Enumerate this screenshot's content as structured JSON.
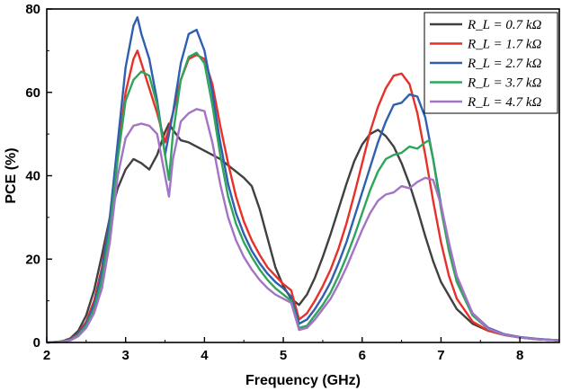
{
  "chart_data": {
    "type": "line",
    "title": "",
    "xlabel": "Frequency (GHz)",
    "ylabel": "PCE (%)",
    "xlim": [
      2,
      8.5
    ],
    "ylim": [
      0,
      80
    ],
    "xticks": [
      "2",
      "3",
      "4",
      "5",
      "6",
      "7",
      "8"
    ],
    "yticks": [
      "0",
      "20",
      "40",
      "60",
      "80"
    ],
    "grid": false,
    "legend_position": "top-right",
    "colors": [
      "#404040",
      "#e8302a",
      "#2f5fb0",
      "#2ea55a",
      "#a374c6"
    ],
    "series": [
      {
        "name": "R_L = 0.7 kΩ",
        "legend_label": "R_L = 0.7 kΩ",
        "x": [
          2.0,
          2.1,
          2.2,
          2.3,
          2.4,
          2.5,
          2.6,
          2.7,
          2.8,
          2.9,
          3.0,
          3.1,
          3.2,
          3.3,
          3.4,
          3.5,
          3.55,
          3.6,
          3.7,
          3.8,
          3.9,
          4.0,
          4.1,
          4.2,
          4.3,
          4.4,
          4.5,
          4.6,
          4.7,
          4.8,
          4.9,
          5.0,
          5.1,
          5.2,
          5.3,
          5.4,
          5.5,
          5.6,
          5.7,
          5.8,
          5.9,
          6.0,
          6.1,
          6.2,
          6.3,
          6.4,
          6.5,
          6.6,
          6.7,
          6.8,
          6.9,
          7.0,
          7.2,
          7.4,
          7.6,
          7.8,
          8.0,
          8.2,
          8.5
        ],
        "y": [
          0,
          0.1,
          0.3,
          1.0,
          2.8,
          6.5,
          12.5,
          21.0,
          30.0,
          37.0,
          41.5,
          44.0,
          43.0,
          41.5,
          45.0,
          50.5,
          52.5,
          51.0,
          48.5,
          48.0,
          47.0,
          46.0,
          45.0,
          44.0,
          42.5,
          41.0,
          39.5,
          37.5,
          32.0,
          25.0,
          18.0,
          13.5,
          10.5,
          9.0,
          11.5,
          15.5,
          20.5,
          26.0,
          32.0,
          38.0,
          43.5,
          47.5,
          50.0,
          51.0,
          49.5,
          47.0,
          43.0,
          38.0,
          32.0,
          25.5,
          19.5,
          14.5,
          8.0,
          4.5,
          2.8,
          1.8,
          1.2,
          0.8,
          0.5
        ]
      },
      {
        "name": "R_L = 1.7 kΩ",
        "legend_label": "R_L = 1.7 kΩ",
        "x": [
          2.0,
          2.1,
          2.2,
          2.3,
          2.4,
          2.5,
          2.6,
          2.7,
          2.8,
          2.9,
          3.0,
          3.1,
          3.15,
          3.2,
          3.3,
          3.4,
          3.5,
          3.6,
          3.7,
          3.8,
          3.9,
          4.0,
          4.1,
          4.2,
          4.3,
          4.4,
          4.5,
          4.6,
          4.7,
          4.8,
          4.9,
          5.0,
          5.1,
          5.2,
          5.3,
          5.4,
          5.5,
          5.6,
          5.7,
          5.8,
          5.9,
          6.0,
          6.1,
          6.2,
          6.3,
          6.4,
          6.5,
          6.6,
          6.7,
          6.8,
          6.9,
          7.0,
          7.1,
          7.2,
          7.4,
          7.6,
          7.8,
          8.0,
          8.2,
          8.5
        ],
        "y": [
          0,
          0.1,
          0.2,
          0.8,
          2.2,
          5.0,
          10.0,
          18.0,
          30.0,
          45.0,
          60.0,
          68.0,
          70.0,
          67.0,
          61.0,
          55.0,
          48.0,
          55.0,
          63.0,
          68.0,
          69.0,
          68.0,
          62.0,
          52.0,
          43.0,
          35.0,
          29.0,
          24.5,
          21.0,
          18.0,
          16.0,
          14.0,
          12.5,
          5.5,
          7.0,
          10.0,
          13.5,
          17.5,
          22.5,
          28.5,
          35.5,
          43.0,
          50.5,
          56.5,
          61.0,
          64.0,
          64.5,
          62.0,
          55.0,
          45.0,
          34.0,
          24.0,
          16.0,
          10.5,
          5.0,
          2.8,
          1.8,
          1.2,
          0.8,
          0.5
        ]
      },
      {
        "name": "R_L = 2.7 kΩ",
        "legend_label": "R_L = 2.7 kΩ",
        "x": [
          2.0,
          2.1,
          2.2,
          2.3,
          2.4,
          2.5,
          2.6,
          2.7,
          2.8,
          2.9,
          3.0,
          3.1,
          3.15,
          3.2,
          3.3,
          3.4,
          3.5,
          3.6,
          3.7,
          3.8,
          3.9,
          4.0,
          4.1,
          4.2,
          4.3,
          4.4,
          4.5,
          4.6,
          4.7,
          4.8,
          4.9,
          5.0,
          5.1,
          5.2,
          5.3,
          5.4,
          5.5,
          5.6,
          5.7,
          5.8,
          5.9,
          6.0,
          6.1,
          6.2,
          6.3,
          6.4,
          6.5,
          6.6,
          6.7,
          6.8,
          6.9,
          7.0,
          7.1,
          7.2,
          7.4,
          7.6,
          7.8,
          8.0,
          8.2,
          8.5
        ],
        "y": [
          0,
          0.1,
          0.2,
          0.7,
          2.0,
          4.5,
          9.0,
          17.0,
          30.0,
          48.0,
          66.0,
          76.0,
          78.0,
          74.0,
          68.0,
          58.0,
          45.0,
          55.0,
          67.0,
          74.0,
          75.0,
          70.0,
          60.0,
          48.0,
          38.0,
          31.0,
          26.0,
          22.0,
          19.0,
          16.5,
          14.5,
          13.0,
          11.0,
          4.5,
          5.5,
          8.0,
          11.0,
          14.5,
          19.0,
          24.0,
          30.0,
          36.0,
          42.0,
          48.0,
          53.0,
          57.0,
          57.5,
          59.5,
          59.0,
          54.0,
          44.0,
          33.0,
          23.0,
          15.0,
          7.0,
          3.5,
          2.0,
          1.3,
          0.9,
          0.5
        ]
      },
      {
        "name": "R_L = 3.7 kΩ",
        "legend_label": "R_L = 3.7 kΩ",
        "x": [
          2.0,
          2.1,
          2.2,
          2.3,
          2.4,
          2.5,
          2.6,
          2.7,
          2.8,
          2.9,
          3.0,
          3.1,
          3.2,
          3.3,
          3.4,
          3.5,
          3.55,
          3.6,
          3.7,
          3.8,
          3.9,
          4.0,
          4.1,
          4.2,
          4.3,
          4.4,
          4.5,
          4.6,
          4.7,
          4.8,
          4.9,
          5.0,
          5.1,
          5.2,
          5.3,
          5.4,
          5.5,
          5.6,
          5.7,
          5.8,
          5.9,
          6.0,
          6.1,
          6.2,
          6.3,
          6.4,
          6.5,
          6.6,
          6.7,
          6.8,
          6.85,
          6.9,
          7.0,
          7.1,
          7.2,
          7.4,
          7.6,
          7.8,
          8.0,
          8.2,
          8.5
        ],
        "y": [
          0,
          0.1,
          0.2,
          0.6,
          1.8,
          4.0,
          8.0,
          15.0,
          27.0,
          44.0,
          58.0,
          63.0,
          65.0,
          64.0,
          57.0,
          45.0,
          39.0,
          50.0,
          63.0,
          68.5,
          69.5,
          67.0,
          57.0,
          45.0,
          35.0,
          28.5,
          24.0,
          20.5,
          17.5,
          15.0,
          13.0,
          11.5,
          10.0,
          3.5,
          4.0,
          6.5,
          9.0,
          12.0,
          16.0,
          20.5,
          25.5,
          31.0,
          36.5,
          41.0,
          44.0,
          45.0,
          45.5,
          47.0,
          46.5,
          48.0,
          48.5,
          44.0,
          32.0,
          22.0,
          14.5,
          6.5,
          3.2,
          1.9,
          1.2,
          0.8,
          0.5
        ]
      },
      {
        "name": "R_L = 4.7 kΩ",
        "legend_label": "R_L = 4.7 kΩ",
        "x": [
          2.0,
          2.1,
          2.2,
          2.3,
          2.4,
          2.5,
          2.6,
          2.7,
          2.8,
          2.9,
          3.0,
          3.1,
          3.2,
          3.3,
          3.4,
          3.5,
          3.55,
          3.6,
          3.7,
          3.8,
          3.9,
          4.0,
          4.1,
          4.2,
          4.3,
          4.4,
          4.5,
          4.6,
          4.7,
          4.8,
          4.9,
          5.0,
          5.1,
          5.2,
          5.3,
          5.4,
          5.5,
          5.6,
          5.7,
          5.8,
          5.9,
          6.0,
          6.1,
          6.2,
          6.3,
          6.4,
          6.5,
          6.6,
          6.7,
          6.8,
          6.9,
          7.0,
          7.1,
          7.2,
          7.4,
          7.6,
          7.8,
          8.0,
          8.2,
          8.5
        ],
        "y": [
          0,
          0.1,
          0.2,
          0.5,
          1.5,
          3.5,
          7.0,
          13.0,
          24.0,
          40.0,
          49.0,
          52.0,
          52.5,
          52.0,
          50.0,
          40.0,
          35.0,
          44.0,
          53.0,
          55.0,
          56.0,
          55.5,
          48.0,
          38.0,
          30.0,
          24.5,
          20.5,
          17.5,
          15.0,
          13.0,
          11.5,
          10.5,
          9.5,
          3.0,
          3.5,
          5.5,
          8.0,
          10.5,
          14.0,
          18.0,
          22.5,
          27.0,
          31.0,
          34.0,
          35.5,
          36.0,
          37.5,
          37.0,
          38.5,
          39.5,
          39.0,
          33.0,
          24.0,
          16.0,
          7.0,
          3.3,
          1.9,
          1.2,
          0.8,
          0.5
        ]
      }
    ]
  }
}
